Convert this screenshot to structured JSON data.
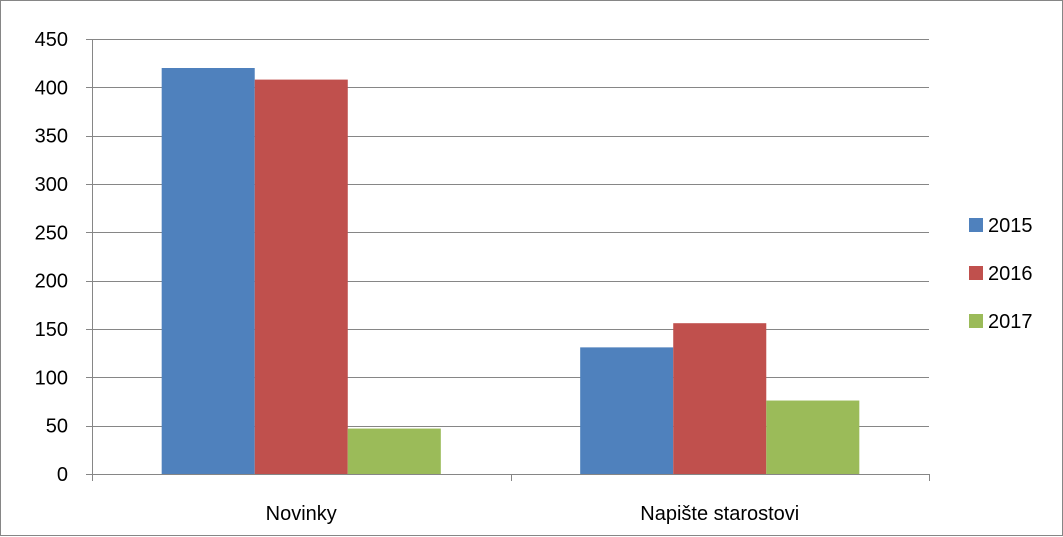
{
  "chart_data": {
    "type": "bar",
    "categories": [
      "Novinky",
      "Napište starostovi"
    ],
    "series": [
      {
        "name": "2015",
        "values": [
          420,
          131
        ],
        "color": "#4F81BD"
      },
      {
        "name": "2016",
        "values": [
          408,
          156
        ],
        "color": "#C0504D"
      },
      {
        "name": "2017",
        "values": [
          47,
          76
        ],
        "color": "#9BBB59"
      }
    ],
    "yticks": [
      "0",
      "50",
      "100",
      "150",
      "200",
      "250",
      "300",
      "350",
      "400",
      "450"
    ],
    "ylim": [
      0,
      450
    ],
    "grid": true,
    "legend_position": "right",
    "colors": {
      "gridline": "#868686",
      "axis": "#868686",
      "border": "#868686"
    }
  }
}
